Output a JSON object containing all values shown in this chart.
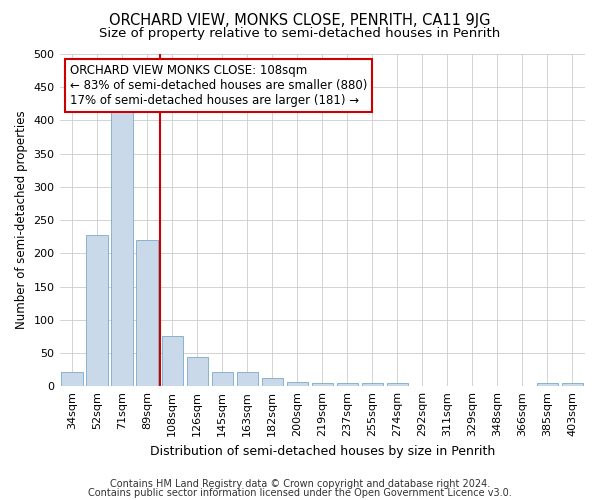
{
  "title": "ORCHARD VIEW, MONKS CLOSE, PENRITH, CA11 9JG",
  "subtitle": "Size of property relative to semi-detached houses in Penrith",
  "xlabel": "Distribution of semi-detached houses by size in Penrith",
  "ylabel": "Number of semi-detached properties",
  "categories": [
    "34sqm",
    "52sqm",
    "71sqm",
    "89sqm",
    "108sqm",
    "126sqm",
    "145sqm",
    "163sqm",
    "182sqm",
    "200sqm",
    "219sqm",
    "237sqm",
    "255sqm",
    "274sqm",
    "292sqm",
    "311sqm",
    "329sqm",
    "348sqm",
    "366sqm",
    "385sqm",
    "403sqm"
  ],
  "values": [
    22,
    227,
    413,
    220,
    76,
    44,
    21,
    21,
    12,
    7,
    5,
    5,
    5,
    5,
    0,
    0,
    0,
    0,
    0,
    5,
    5
  ],
  "bar_color": "#c9d9ea",
  "bar_edge_color": "#7aaac8",
  "vline_index": 4,
  "vline_color": "#cc0000",
  "annotation_text": "ORCHARD VIEW MONKS CLOSE: 108sqm\n← 83% of semi-detached houses are smaller (880)\n17% of semi-detached houses are larger (181) →",
  "annotation_box_color": "#ffffff",
  "annotation_box_edge": "#cc0000",
  "ylim": [
    0,
    500
  ],
  "yticks": [
    0,
    50,
    100,
    150,
    200,
    250,
    300,
    350,
    400,
    450,
    500
  ],
  "footer1": "Contains HM Land Registry data © Crown copyright and database right 2024.",
  "footer2": "Contains public sector information licensed under the Open Government Licence v3.0.",
  "bg_color": "#ffffff",
  "plot_bg_color": "#ffffff",
  "title_fontsize": 10.5,
  "subtitle_fontsize": 9.5,
  "xlabel_fontsize": 9,
  "ylabel_fontsize": 8.5,
  "tick_fontsize": 8,
  "annotation_fontsize": 8.5,
  "footer_fontsize": 7
}
